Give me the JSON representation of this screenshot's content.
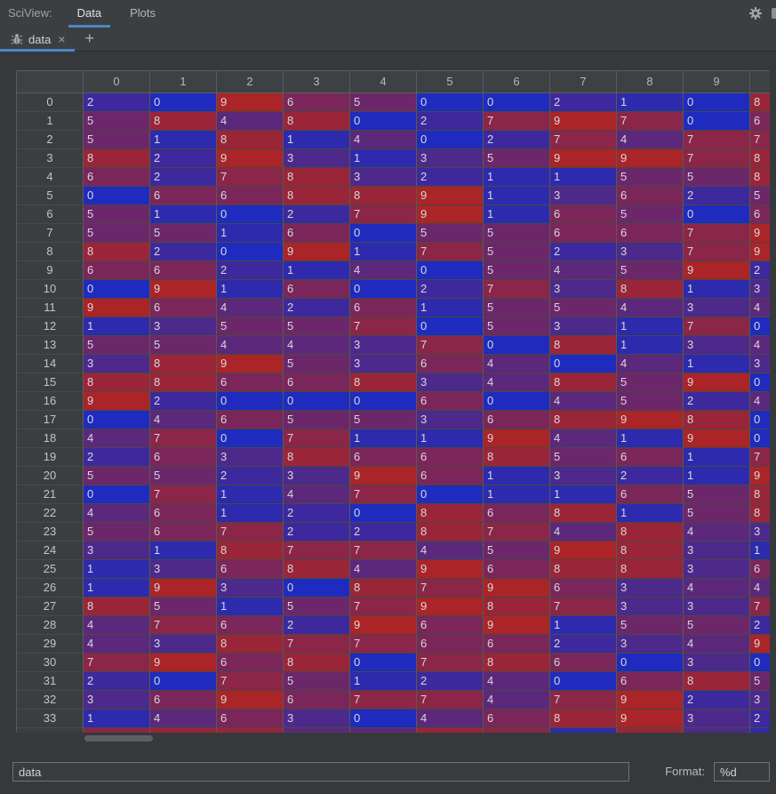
{
  "toolbar": {
    "label": "SciView:",
    "tabs": [
      {
        "label": "Data",
        "active": true
      },
      {
        "label": "Plots",
        "active": false
      }
    ]
  },
  "tab_strip": {
    "tab_label": "data",
    "close_icon": "×",
    "add_icon": "+"
  },
  "accent_color": "#4a88c7",
  "table": {
    "corner_label": "",
    "col_headers": [
      "0",
      "1",
      "2",
      "3",
      "4",
      "5",
      "6",
      "7",
      "8",
      "9",
      ""
    ],
    "rows": [
      {
        "h": "0",
        "v": [
          2,
          0,
          9,
          6,
          5,
          0,
          0,
          2,
          1,
          0,
          8
        ]
      },
      {
        "h": "1",
        "v": [
          5,
          8,
          4,
          8,
          0,
          2,
          7,
          9,
          7,
          0,
          6
        ]
      },
      {
        "h": "2",
        "v": [
          5,
          1,
          8,
          1,
          4,
          0,
          2,
          7,
          4,
          7,
          7
        ]
      },
      {
        "h": "3",
        "v": [
          8,
          2,
          9,
          3,
          1,
          3,
          5,
          9,
          9,
          7,
          8
        ]
      },
      {
        "h": "4",
        "v": [
          6,
          2,
          7,
          8,
          3,
          2,
          1,
          1,
          5,
          5,
          8
        ]
      },
      {
        "h": "5",
        "v": [
          0,
          6,
          6,
          8,
          8,
          9,
          1,
          3,
          6,
          2,
          5
        ]
      },
      {
        "h": "6",
        "v": [
          5,
          1,
          0,
          2,
          7,
          9,
          1,
          6,
          5,
          0,
          6
        ]
      },
      {
        "h": "7",
        "v": [
          5,
          5,
          1,
          6,
          0,
          5,
          5,
          6,
          6,
          7,
          9
        ]
      },
      {
        "h": "8",
        "v": [
          8,
          2,
          0,
          9,
          1,
          7,
          5,
          2,
          3,
          7,
          9
        ]
      },
      {
        "h": "9",
        "v": [
          6,
          6,
          2,
          1,
          4,
          0,
          5,
          4,
          5,
          9,
          2
        ]
      },
      {
        "h": "10",
        "v": [
          0,
          9,
          1,
          6,
          0,
          2,
          7,
          3,
          8,
          1,
          3
        ]
      },
      {
        "h": "11",
        "v": [
          9,
          6,
          4,
          2,
          6,
          1,
          5,
          5,
          4,
          3,
          4
        ]
      },
      {
        "h": "12",
        "v": [
          1,
          3,
          5,
          5,
          7,
          0,
          5,
          3,
          1,
          7,
          0
        ]
      },
      {
        "h": "13",
        "v": [
          5,
          5,
          4,
          4,
          3,
          7,
          0,
          8,
          1,
          3,
          4
        ]
      },
      {
        "h": "14",
        "v": [
          3,
          8,
          9,
          5,
          3,
          6,
          4,
          0,
          4,
          1,
          3
        ]
      },
      {
        "h": "15",
        "v": [
          8,
          8,
          6,
          6,
          8,
          3,
          4,
          8,
          5,
          9,
          0
        ]
      },
      {
        "h": "16",
        "v": [
          9,
          2,
          0,
          0,
          0,
          6,
          0,
          4,
          5,
          2,
          4
        ]
      },
      {
        "h": "17",
        "v": [
          0,
          4,
          6,
          5,
          5,
          3,
          6,
          8,
          9,
          8,
          0
        ]
      },
      {
        "h": "18",
        "v": [
          4,
          7,
          0,
          7,
          1,
          1,
          9,
          4,
          1,
          9,
          0
        ]
      },
      {
        "h": "19",
        "v": [
          2,
          6,
          3,
          8,
          6,
          6,
          8,
          5,
          6,
          1,
          7
        ]
      },
      {
        "h": "20",
        "v": [
          5,
          5,
          2,
          3,
          9,
          6,
          1,
          3,
          2,
          1,
          9
        ]
      },
      {
        "h": "21",
        "v": [
          0,
          7,
          1,
          4,
          7,
          0,
          1,
          1,
          6,
          5,
          8
        ]
      },
      {
        "h": "22",
        "v": [
          4,
          6,
          1,
          2,
          0,
          8,
          6,
          8,
          1,
          5,
          8
        ]
      },
      {
        "h": "23",
        "v": [
          5,
          6,
          7,
          2,
          2,
          8,
          7,
          4,
          8,
          4,
          3
        ]
      },
      {
        "h": "24",
        "v": [
          3,
          1,
          8,
          7,
          7,
          4,
          5,
          9,
          8,
          3,
          1
        ]
      },
      {
        "h": "25",
        "v": [
          1,
          3,
          6,
          8,
          4,
          9,
          6,
          8,
          8,
          3,
          6
        ]
      },
      {
        "h": "26",
        "v": [
          1,
          9,
          3,
          0,
          8,
          7,
          9,
          6,
          3,
          4,
          4
        ]
      },
      {
        "h": "27",
        "v": [
          8,
          5,
          1,
          5,
          7,
          9,
          8,
          7,
          3,
          3,
          7
        ]
      },
      {
        "h": "28",
        "v": [
          4,
          7,
          6,
          2,
          9,
          6,
          9,
          1,
          5,
          5,
          2
        ]
      },
      {
        "h": "29",
        "v": [
          4,
          3,
          8,
          7,
          7,
          6,
          6,
          2,
          3,
          4,
          9
        ]
      },
      {
        "h": "30",
        "v": [
          7,
          9,
          6,
          8,
          0,
          7,
          8,
          6,
          0,
          3,
          0
        ]
      },
      {
        "h": "31",
        "v": [
          2,
          0,
          7,
          5,
          1,
          2,
          4,
          0,
          6,
          8,
          5
        ]
      },
      {
        "h": "32",
        "v": [
          3,
          6,
          9,
          6,
          7,
          7,
          4,
          7,
          9,
          2,
          3
        ]
      },
      {
        "h": "33",
        "v": [
          1,
          4,
          6,
          3,
          0,
          4,
          6,
          8,
          9,
          3,
          2
        ]
      }
    ],
    "palette": {
      "0": "#1E2BBE",
      "1": "#2E2AAD",
      "2": "#3D299D",
      "3": "#4D298C",
      "4": "#5C287B",
      "5": "#6C276B",
      "6": "#7B265A",
      "7": "#8B2649",
      "8": "#9A2539",
      "9": "#AA2428"
    },
    "partial_row_colors": [
      "#8B2649",
      "#9A2539",
      "#9A2539",
      "#5C287B",
      "#5C287B",
      "#9A2539",
      "#8B2649",
      "#2E2AAD",
      "#9A2539",
      "#4D298C",
      "#2E2AAD"
    ]
  },
  "bottom_bar": {
    "slice_value": "data",
    "format_label": "Format:",
    "format_value": "%d"
  }
}
